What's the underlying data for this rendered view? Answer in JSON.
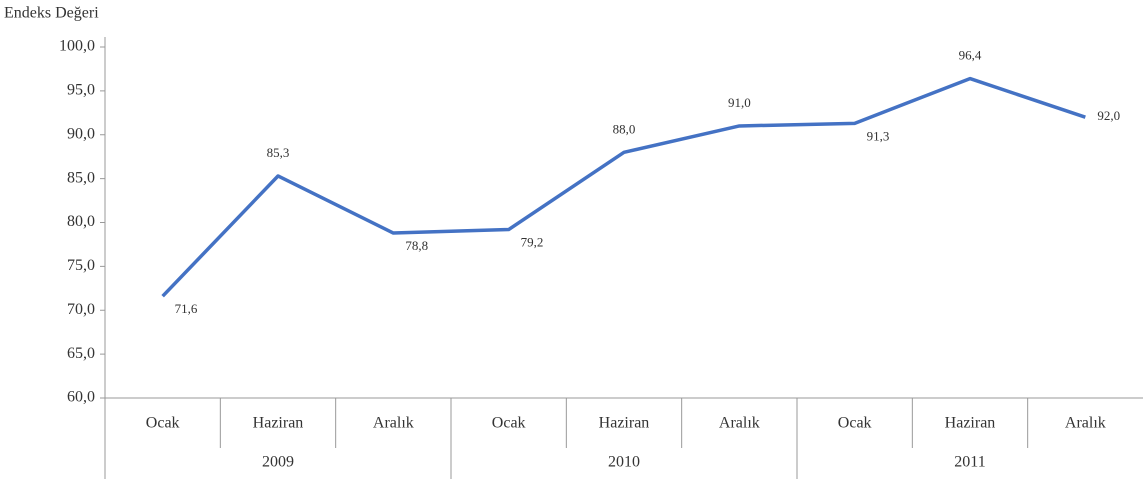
{
  "chart_data": {
    "type": "line",
    "y_label": "Endeks Değeri",
    "categories": [
      "Ocak",
      "Haziran",
      "Aralık",
      "Ocak",
      "Haziran",
      "Aralık",
      "Ocak",
      "Haziran",
      "Aralık"
    ],
    "category_groups": [
      "2009",
      "2010",
      "2011"
    ],
    "values": [
      71.6,
      85.3,
      78.8,
      79.2,
      88.0,
      91.0,
      91.3,
      96.4,
      92.0
    ],
    "value_labels": [
      "71,6",
      "85,3",
      "78,8",
      "79,2",
      "88,0",
      "91,0",
      "91,3",
      "96,4",
      "92,0"
    ],
    "color": "#4472c4",
    "ylim": [
      60,
      100
    ],
    "yticks": [
      {
        "value": 60,
        "label": "60,0"
      },
      {
        "value": 65,
        "label": "65,0"
      },
      {
        "value": 70,
        "label": "70,0"
      },
      {
        "value": 75,
        "label": "75,0"
      },
      {
        "value": 80,
        "label": "80,0"
      },
      {
        "value": 85,
        "label": "85,0"
      },
      {
        "value": 90,
        "label": "90,0"
      },
      {
        "value": 95,
        "label": "95,0"
      },
      {
        "value": 100,
        "label": "100,0"
      }
    ]
  }
}
